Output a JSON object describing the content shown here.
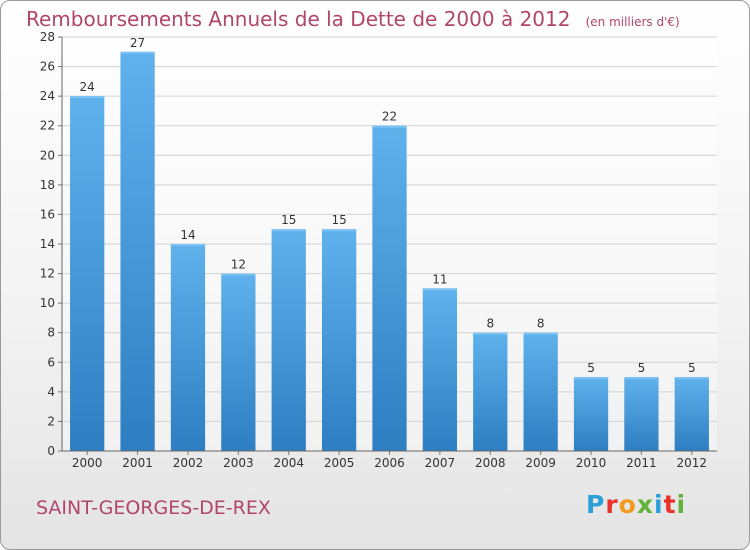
{
  "title": "Remboursements Annuels de la Dette de 2000 à 2012",
  "unit_note": "(en milliers d'€)",
  "town": "SAINT-GEORGES-DE-REX",
  "logo": {
    "letters": [
      "P",
      "r",
      "o",
      "x",
      "i",
      "t",
      "i"
    ],
    "colors": [
      "#2a9fd8",
      "#e8322b",
      "#f29a1f",
      "#63b23a",
      "#2a9fd8",
      "#e8322b",
      "#63b23a"
    ]
  },
  "chart_data": {
    "type": "bar",
    "categories": [
      "2000",
      "2001",
      "2002",
      "2003",
      "2004",
      "2005",
      "2006",
      "2007",
      "2008",
      "2009",
      "2010",
      "2011",
      "2012"
    ],
    "values": [
      24,
      27,
      14,
      12,
      15,
      15,
      22,
      11,
      8,
      8,
      5,
      5,
      5
    ],
    "ylim": [
      0,
      28
    ],
    "yticks": [
      0,
      2,
      4,
      6,
      8,
      10,
      12,
      14,
      16,
      18,
      20,
      22,
      24,
      26,
      28
    ],
    "bar_color": "#3d97dc",
    "grid": true
  }
}
